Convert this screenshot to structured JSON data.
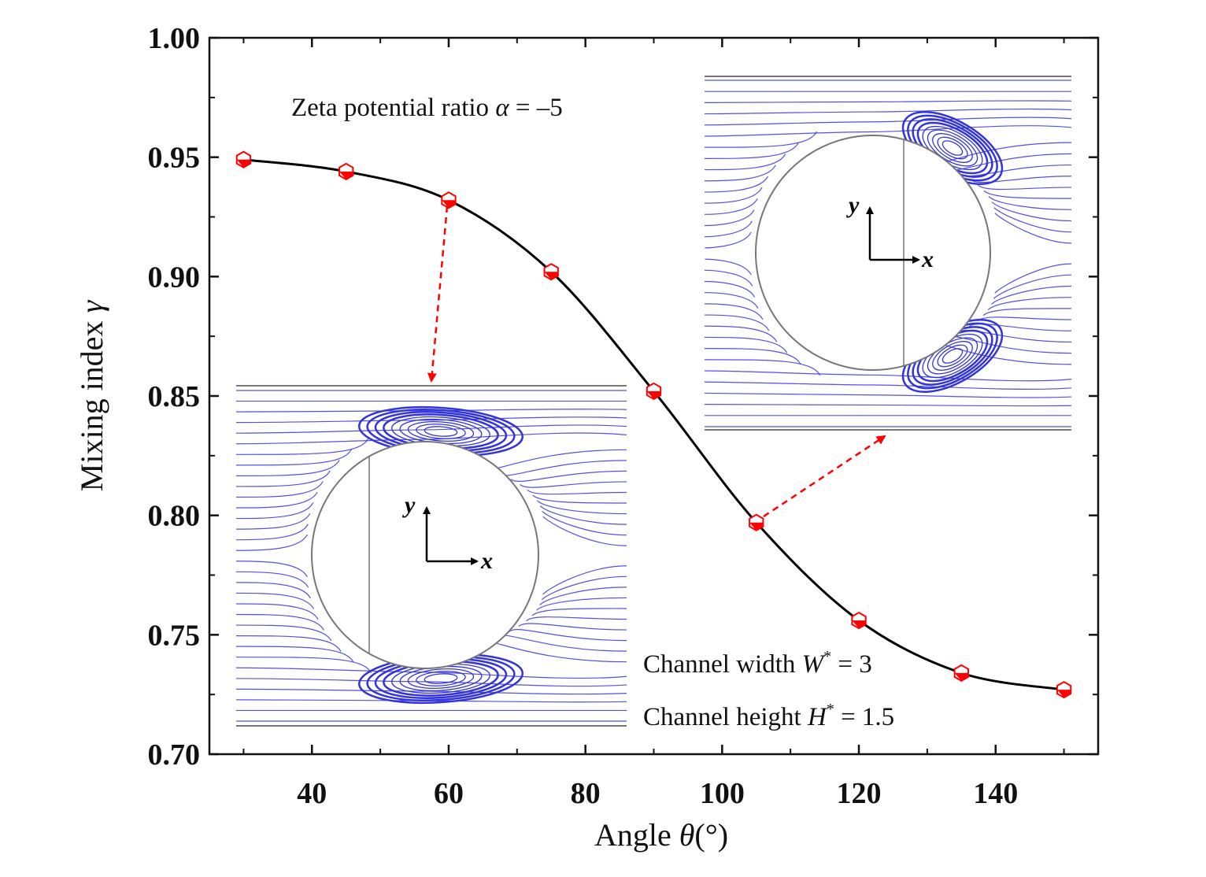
{
  "chart_data": {
    "type": "line",
    "x": [
      30,
      45,
      60,
      75,
      90,
      105,
      120,
      135,
      150
    ],
    "series": [
      {
        "values": [
          0.949,
          0.944,
          0.932,
          0.902,
          0.852,
          0.797,
          0.756,
          0.734,
          0.727
        ]
      }
    ],
    "xlabel_prefix": "Angle ",
    "xlabel_symbol": "θ",
    "xlabel_unit": "(°)",
    "ylabel_prefix": "Mixing index ",
    "ylabel_symbol": "γ",
    "xlim": [
      25,
      155
    ],
    "ylim": [
      0.7,
      1.0
    ],
    "x_ticks": [
      "40",
      "60",
      "80",
      "100",
      "120",
      "140"
    ],
    "x_tick_values": [
      40,
      60,
      80,
      100,
      120,
      140
    ],
    "y_ticks": [
      "0.70",
      "0.75",
      "0.80",
      "0.85",
      "0.90",
      "0.95",
      "1.00"
    ],
    "y_tick_values": [
      0.7,
      0.75,
      0.8,
      0.85,
      0.9,
      0.95,
      1.0
    ],
    "grid": false,
    "line_color": "#000000",
    "marker_color": "#ff0000",
    "streamline_color": "#3333dd",
    "arrow_color": "#ff0000",
    "annotations": {
      "zeta_prefix": "Zeta potential ratio ",
      "zeta_symbol": "α",
      "zeta_suffix": " = –5",
      "width_prefix": "Channel width ",
      "width_symbol": "W",
      "width_sup": "*",
      "width_suffix": " = 3",
      "height_prefix": "Channel height ",
      "height_symbol": "H",
      "height_sup": "*",
      "height_suffix": " = 1.5"
    },
    "inset_axes": {
      "y": "y",
      "x": "x"
    }
  }
}
